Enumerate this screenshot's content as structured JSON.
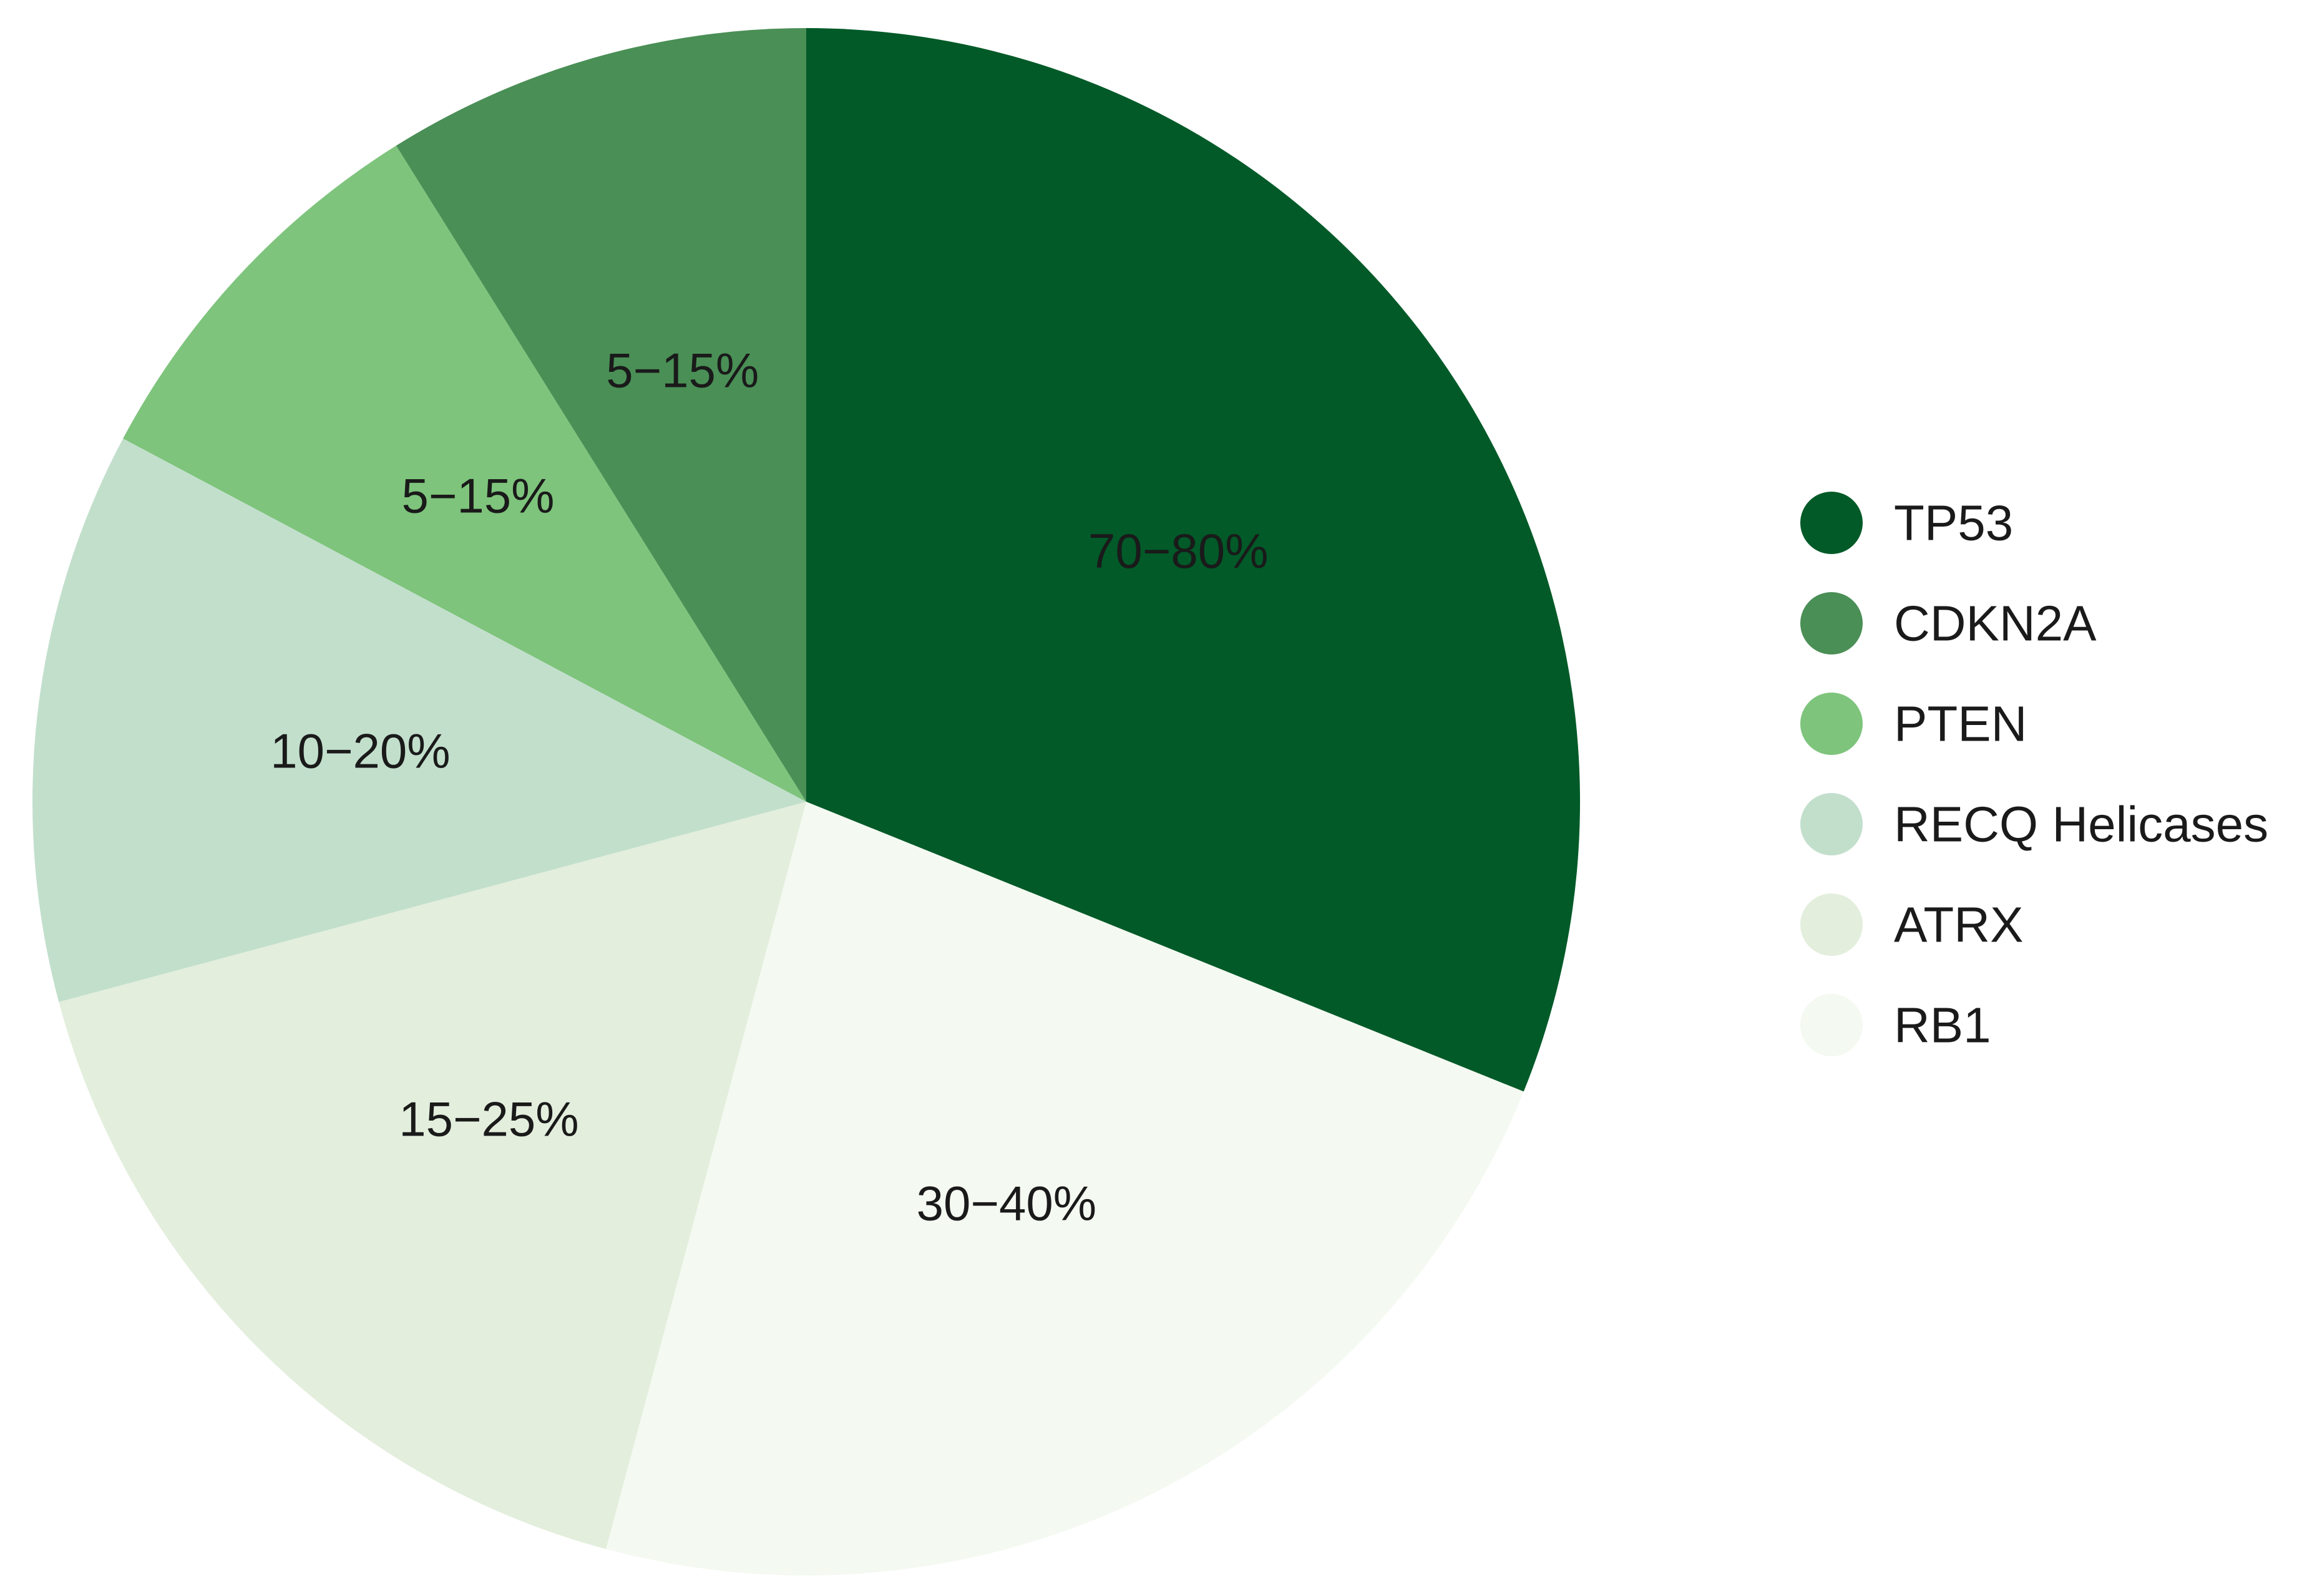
{
  "chart_data": {
    "type": "pie",
    "slices": [
      {
        "name": "TP53",
        "label": "70−80%",
        "value": 112,
        "color": "#015a28"
      },
      {
        "name": "RB1",
        "label": "30−40%",
        "value": 83,
        "color": "#f4f9f1"
      },
      {
        "name": "ATRX",
        "label": "15−25%",
        "value": 60,
        "color": "#e3eedd"
      },
      {
        "name": "RECQ Helicases",
        "label": "10−20%",
        "value": 43,
        "color": "#c2dfcc"
      },
      {
        "name": "PTEN",
        "label": "5−15%",
        "value": 30,
        "color": "#7ec47c"
      },
      {
        "name": "CDKN2A",
        "label": "5−15%",
        "value": 32,
        "color": "#4a8f56"
      }
    ],
    "legend": {
      "placement": "right",
      "entries": [
        "TP53",
        "CDKN2A",
        "PTEN",
        "RECQ Helicases",
        "ATRX",
        "RB1"
      ]
    }
  }
}
